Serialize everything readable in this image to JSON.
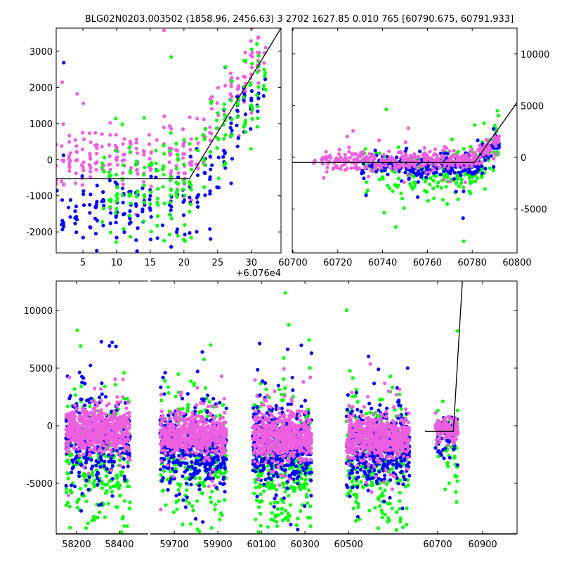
{
  "title": "BLG02N0203.003502 (1858.96, 2456.63)   3 2702 1627.85 0.010 765 [60790.675, 60791.933]",
  "colors": {
    "blue": "#0000ff",
    "green": "#00ff00",
    "pink": "#ee5fe0",
    "line": "#000000"
  },
  "chart_data": [
    {
      "id": "top-left",
      "type": "scatter",
      "xlim": [
        1.04,
        34.4
      ],
      "ylim": [
        -2580,
        3640
      ],
      "xticks": [
        5,
        10,
        15,
        20,
        25,
        30
      ],
      "xtick_labels": [
        "5",
        "10",
        "15",
        "20",
        "25",
        "30"
      ],
      "x_offset_label": "+6.076e4",
      "yticks": [
        3000,
        2000,
        1000,
        0,
        -1000,
        -2000
      ],
      "ytick_labels": [
        "3000",
        "2000",
        "1000",
        "0",
        "-1000",
        "-2000"
      ],
      "fit_line": [
        [
          1.04,
          -530
        ],
        [
          20.8,
          -530
        ],
        [
          34.4,
          3640
        ]
      ],
      "series_model": [
        {
          "color": "pink",
          "n": 260,
          "x": [
            1,
            32
          ],
          "mean": 0,
          "sd": 450,
          "slope_after": [
            21,
            230
          ]
        },
        {
          "color": "blue",
          "n": 200,
          "x": [
            1,
            32
          ],
          "mean": -1300,
          "sd": 500,
          "slope_after": [
            21,
            260
          ]
        },
        {
          "color": "green",
          "n": 200,
          "x": [
            8,
            32
          ],
          "mean": -700,
          "sd": 700,
          "slope_after": [
            21,
            230
          ]
        }
      ]
    },
    {
      "id": "top-right",
      "type": "scatter",
      "xlim": [
        60699.7,
        60800
      ],
      "ylim": [
        -9250,
        12500
      ],
      "xticks": [
        60700,
        60720,
        60740,
        60760,
        60780,
        60800
      ],
      "xtick_labels": [
        "60700",
        "60720",
        "60740",
        "60760",
        "60780",
        "60800"
      ],
      "yticks": [
        10000,
        5000,
        0,
        -5000
      ],
      "ytick_labels": [
        "10000",
        "5000",
        "0",
        "-5000"
      ],
      "fit_line": [
        [
          60699.7,
          -500
        ],
        [
          60781,
          -500
        ],
        [
          60800,
          5300
        ]
      ],
      "series_model": [
        {
          "color": "green",
          "n": 220,
          "x": [
            60728,
            60792
          ],
          "mean": -1500,
          "sd": 1400,
          "slope_after": [
            60780,
            250
          ]
        },
        {
          "color": "blue",
          "n": 260,
          "x": [
            60728,
            60792
          ],
          "mean": -900,
          "sd": 600,
          "slope_after": [
            60780,
            200
          ]
        },
        {
          "color": "pink",
          "n": 380,
          "x": [
            60708,
            60792
          ],
          "mean": -300,
          "sd": 450,
          "slope_after": [
            60780,
            180
          ]
        }
      ]
    },
    {
      "id": "bottom",
      "type": "scatter",
      "broken_x_segments": [
        [
          58105,
          58535
        ],
        [
          59590,
          60835
        ],
        [
          60644,
          61053
        ]
      ],
      "ylim": [
        -9390,
        12560
      ],
      "xticks": [
        [
          0,
          58200
        ],
        [
          0,
          58400
        ],
        [
          1,
          59700
        ],
        [
          1,
          59900
        ],
        [
          1,
          60100
        ],
        [
          1,
          60300
        ],
        [
          1,
          60500
        ],
        [
          2,
          60700
        ],
        [
          2,
          60900
        ]
      ],
      "xtick_labels": [
        "58200",
        "58400",
        "59700",
        "59900",
        "60100",
        "60300",
        "60500",
        "60700",
        "60900"
      ],
      "yticks": [
        10000,
        5000,
        0,
        -5000
      ],
      "ytick_labels": [
        "10000",
        "5000",
        "0",
        "-5000"
      ],
      "fit_line": [
        [
          2,
          60644,
          -500
        ],
        [
          2,
          60770,
          -500
        ],
        [
          2,
          60810,
          12560
        ]
      ],
      "series_model": [
        {
          "segment": 0,
          "x": [
            58150,
            58450
          ],
          "clusters": [
            {
              "color": "green",
              "n": 260,
              "mean": -3000,
              "sd": 2600
            },
            {
              "color": "blue",
              "n": 280,
              "mean": -1200,
              "sd": 2000
            },
            {
              "color": "pink",
              "n": 600,
              "mean": -300,
              "sd": 900
            }
          ]
        },
        {
          "segment": 1,
          "x": [
            59635,
            59940
          ],
          "clusters": [
            {
              "color": "green",
              "n": 240,
              "mean": -3000,
              "sd": 2800
            },
            {
              "color": "blue",
              "n": 380,
              "mean": -2200,
              "sd": 1600
            },
            {
              "color": "pink",
              "n": 550,
              "mean": -800,
              "sd": 800
            }
          ]
        },
        {
          "segment": 1,
          "x": [
            60060,
            60330
          ],
          "clusters": [
            {
              "color": "green",
              "n": 300,
              "mean": -3500,
              "sd": 2800
            },
            {
              "color": "blue",
              "n": 420,
              "mean": -1800,
              "sd": 1800
            },
            {
              "color": "pink",
              "n": 550,
              "mean": -900,
              "sd": 1000
            }
          ]
        },
        {
          "segment": 1,
          "x": [
            60490,
            60780
          ],
          "clusters": [
            {
              "color": "green",
              "n": 240,
              "mean": -3000,
              "sd": 2800
            },
            {
              "color": "blue",
              "n": 400,
              "mean": -2000,
              "sd": 1700
            },
            {
              "color": "pink",
              "n": 550,
              "mean": -1000,
              "sd": 900
            }
          ]
        },
        {
          "segment": 2,
          "x": [
            60690,
            60790
          ],
          "clusters": [
            {
              "color": "green",
              "n": 40,
              "mean": -1500,
              "sd": 1800
            },
            {
              "color": "blue",
              "n": 60,
              "mean": -900,
              "sd": 900
            },
            {
              "color": "pink",
              "n": 120,
              "mean": -300,
              "sd": 500
            }
          ]
        }
      ]
    }
  ]
}
